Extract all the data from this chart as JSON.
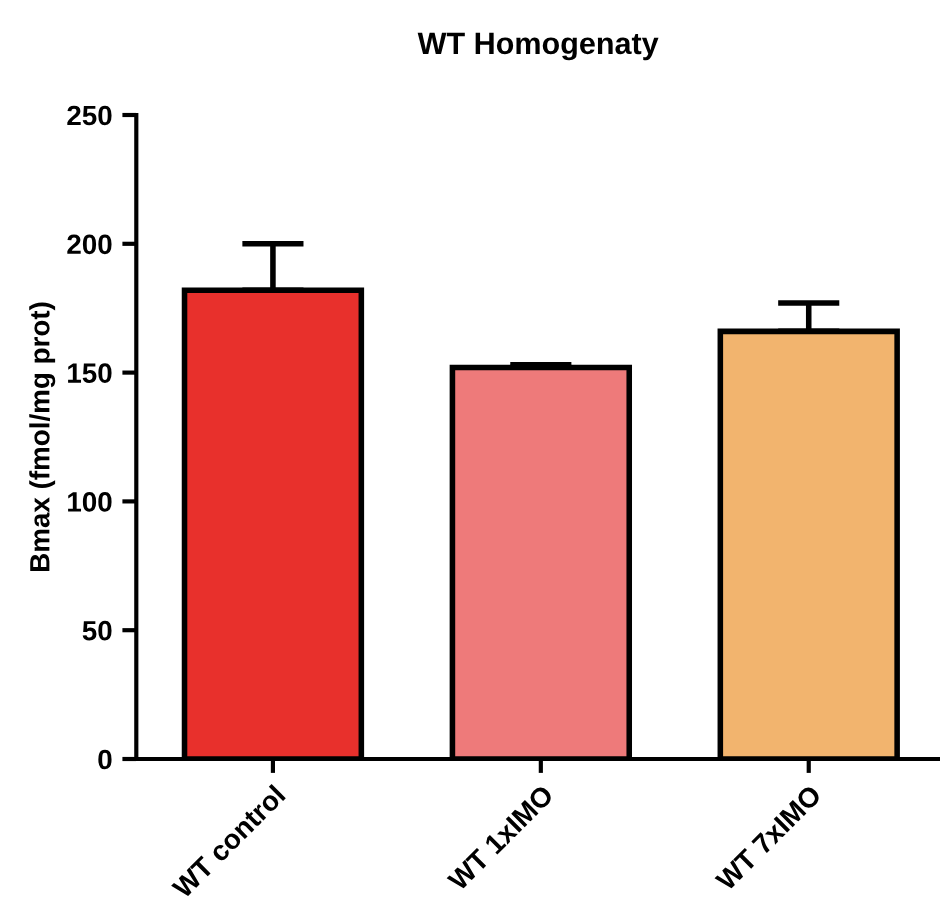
{
  "chart_data": {
    "type": "bar",
    "title": "WT Homogenaty",
    "ylabel": "Bmax (fmol/mg prot)",
    "categories": [
      "WT control",
      "WT 1xIMO",
      "WT 7xIMO"
    ],
    "values": [
      182,
      152,
      166
    ],
    "colors": [
      "#e8302c",
      "#ee7a7a",
      "#f2b46e"
    ],
    "errors": [
      [
        182,
        200
      ],
      [
        152,
        153
      ],
      [
        166,
        177
      ]
    ],
    "ylim": [
      0,
      250
    ],
    "yticks": [
      0,
      50,
      100,
      150,
      200,
      250
    ],
    "grid": false,
    "legend": false
  }
}
